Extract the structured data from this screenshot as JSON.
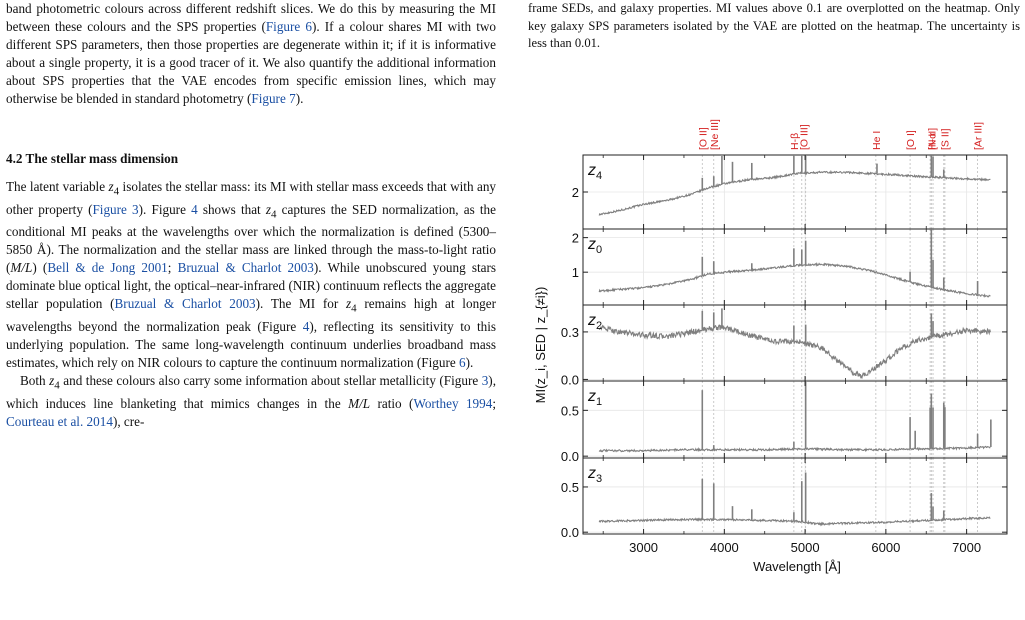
{
  "left": {
    "para1": [
      {
        "t": "band photometric colours across different redshift slices. We do this by measuring the MI between these colours and the SPS properties ("
      },
      {
        "t": "Figure 6",
        "c": 1
      },
      {
        "t": "). If a colour shares MI with two different SPS parameters, then those properties are degenerate within it; if it is informative about a single property, it is a good tracer of it. We also quantify the additional information about SPS properties that the VAE encodes from specific emission lines, which may otherwise be blended in standard photometry ("
      },
      {
        "t": "Figure 7",
        "c": 1
      },
      {
        "t": ")."
      }
    ],
    "section_heading": "4.2  The stellar mass dimension",
    "para2": [
      {
        "t": "The latent variable "
      },
      {
        "t": "z",
        "m": 1
      },
      {
        "t": "4",
        "sub": 1
      },
      {
        "t": " isolates the stellar mass: its MI with stellar mass exceeds that with any other property ("
      },
      {
        "t": "Figure 3",
        "c": 1
      },
      {
        "t": "). Figure "
      },
      {
        "t": "4",
        "c": 1
      },
      {
        "t": " shows that "
      },
      {
        "t": "z",
        "m": 1
      },
      {
        "t": "4",
        "sub": 1
      },
      {
        "t": " captures the SED normalization, as the conditional MI peaks at the wavelengths over which the normalization is defined (5300–5850 Å). The normalization and the stellar mass are linked through the mass-to-light ratio ("
      },
      {
        "t": "M/L",
        "m": 1
      },
      {
        "t": ") ("
      },
      {
        "t": "Bell & de Jong 2001",
        "c": 1
      },
      {
        "t": "; "
      },
      {
        "t": "Bruzual & Charlot 2003",
        "c": 1
      },
      {
        "t": "). While unobscured young stars dominate blue optical light, the optical–near-infrared (NIR) continuum reflects the aggregate stellar population ("
      },
      {
        "t": "Bruzual & Charlot 2003",
        "c": 1
      },
      {
        "t": "). The MI for "
      },
      {
        "t": "z",
        "m": 1
      },
      {
        "t": "4",
        "sub": 1
      },
      {
        "t": " remains high at longer wavelengths beyond the normalization peak (Figure "
      },
      {
        "t": "4",
        "c": 1
      },
      {
        "t": "), reflecting its sensitivity to this underlying population. The same long-wavelength continuum underlies broadband mass estimates, which rely on NIR colours to capture the continuum normalization (Figure "
      },
      {
        "t": "6",
        "c": 1
      },
      {
        "t": ")."
      }
    ],
    "para3": [
      {
        "t": "Both "
      },
      {
        "t": "z",
        "m": 1
      },
      {
        "t": "4",
        "sub": 1
      },
      {
        "t": " and these colours also carry some information about stellar metallicity (Figure "
      },
      {
        "t": "3",
        "c": 1
      },
      {
        "t": "), which induces line blanketing that mimics changes in the "
      },
      {
        "t": "M/L",
        "m": 1
      },
      {
        "t": " ratio ("
      },
      {
        "t": "Worthey 1994",
        "c": 1
      },
      {
        "t": "; "
      },
      {
        "t": "Courteau et al. 2014",
        "c": 1
      },
      {
        "t": "), cre-"
      }
    ]
  },
  "caption": "frame SEDs, and galaxy properties. MI values above 0.1 are overplotted on the heatmap. Only key galaxy SPS parameters isolated by the VAE are plotted on the heatmap. The uncertainty is less than 0.01.",
  "chart_data": {
    "type": "line",
    "xlabel": "Wavelength [Å]",
    "ylabel": "MI(z_i, SED | z_{≠i})",
    "xlim": [
      2250,
      7500
    ],
    "x_ticks": [
      3000,
      4000,
      5000,
      6000,
      7000
    ],
    "grid": true,
    "emission_lines": [
      {
        "label": "[O II]",
        "wl": [
          3727
        ]
      },
      {
        "label": "[Ne III]",
        "wl": [
          3869
        ]
      },
      {
        "label": "H-β",
        "wl": [
          4861
        ]
      },
      {
        "label": "[O III]",
        "wl": [
          4959,
          5007
        ]
      },
      {
        "label": "He I",
        "wl": [
          5876
        ]
      },
      {
        "label": "[O I]",
        "wl": [
          6300
        ]
      },
      {
        "label": "H-α",
        "wl": [
          6563
        ]
      },
      {
        "label": "[N II]",
        "wl": [
          6548,
          6584
        ]
      },
      {
        "label": "[S II]",
        "wl": [
          6717,
          6731
        ]
      },
      {
        "label": "[Ar III]",
        "wl": [
          7136
        ]
      }
    ],
    "panels": [
      {
        "name": "z4",
        "label": "z",
        "sub": "4",
        "ylim": [
          1.1,
          2.9
        ],
        "yticks": [
          2
        ],
        "series": [
          {
            "x": [
              2450,
              2700,
              3000,
              3300,
              3600,
              3800,
              4000,
              4300,
              4600,
              4900,
              5200,
              5500,
              5800,
              6100,
              6400,
              6700,
              7000,
              7300
            ],
            "y": [
              1.45,
              1.55,
              1.7,
              1.8,
              1.95,
              2.1,
              2.2,
              2.3,
              2.35,
              2.45,
              2.48,
              2.48,
              2.45,
              2.42,
              2.38,
              2.35,
              2.32,
              2.3
            ]
          }
        ],
        "spikes": [
          [
            3727,
            0.3
          ],
          [
            3869,
            0.25
          ],
          [
            3970,
            0.7
          ],
          [
            4101,
            0.5
          ],
          [
            4340,
            0.4
          ],
          [
            4861,
            0.6
          ],
          [
            4959,
            0.55
          ],
          [
            5007,
            0.75
          ],
          [
            5890,
            0.25
          ],
          [
            6563,
            0.6
          ],
          [
            6584,
            0.5
          ],
          [
            6717,
            0.2
          ]
        ]
      },
      {
        "name": "z0",
        "label": "z",
        "sub": "0",
        "ylim": [
          0.05,
          2.25
        ],
        "yticks": [
          1,
          2
        ],
        "series": [
          {
            "x": [
              2450,
              2700,
              3000,
              3300,
              3600,
              3800,
              4000,
              4300,
              4600,
              4900,
              5200,
              5500,
              5800,
              6100,
              6400,
              6700,
              7000,
              7300
            ],
            "y": [
              0.45,
              0.5,
              0.55,
              0.65,
              0.8,
              0.95,
              1.0,
              1.05,
              1.12,
              1.2,
              1.23,
              1.18,
              1.05,
              0.85,
              0.65,
              0.5,
              0.38,
              0.3
            ]
          }
        ],
        "spikes": [
          [
            3727,
            0.55
          ],
          [
            3869,
            0.35
          ],
          [
            4340,
            0.2
          ],
          [
            4861,
            0.5
          ],
          [
            4959,
            0.45
          ],
          [
            5007,
            0.7
          ],
          [
            6300,
            0.3
          ],
          [
            6563,
            1.7
          ],
          [
            6584,
            0.8
          ],
          [
            6717,
            0.35
          ],
          [
            7136,
            0.4
          ]
        ]
      },
      {
        "name": "z2",
        "label": "z",
        "sub": "2",
        "ylim": [
          -0.01,
          0.47
        ],
        "yticks": [
          0.0,
          0.3
        ],
        "series": [
          {
            "x": [
              2450,
              2700,
              3000,
              3300,
              3600,
              3800,
              4000,
              4300,
              4600,
              4900,
              5200,
              5400,
              5600,
              5700,
              5800,
              6000,
              6200,
              6400,
              6600,
              6800,
              7000,
              7300
            ],
            "y": [
              0.33,
              0.3,
              0.28,
              0.27,
              0.3,
              0.32,
              0.33,
              0.28,
              0.24,
              0.24,
              0.2,
              0.12,
              0.04,
              0.02,
              0.05,
              0.12,
              0.2,
              0.25,
              0.27,
              0.29,
              0.31,
              0.3
            ]
          }
        ],
        "spikes": [
          [
            3727,
            0.12
          ],
          [
            3869,
            0.1
          ],
          [
            3970,
            0.12
          ],
          [
            4861,
            0.1
          ],
          [
            5007,
            0.12
          ],
          [
            6563,
            0.15
          ],
          [
            6584,
            0.1
          ]
        ]
      },
      {
        "name": "z1",
        "label": "z",
        "sub": "1",
        "ylim": [
          -0.02,
          0.82
        ],
        "yticks": [
          0.0,
          0.5
        ],
        "series": [
          {
            "x": [
              2450,
              3000,
              3500,
              4000,
              4500,
              5000,
              5500,
              6000,
              6500,
              7000,
              7300
            ],
            "y": [
              0.06,
              0.06,
              0.07,
              0.07,
              0.07,
              0.08,
              0.07,
              0.07,
              0.08,
              0.09,
              0.1
            ]
          }
        ],
        "spikes": [
          [
            3727,
            0.65
          ],
          [
            3869,
            0.05
          ],
          [
            4861,
            0.08
          ],
          [
            5007,
            0.75
          ],
          [
            6300,
            0.35
          ],
          [
            6363,
            0.2
          ],
          [
            6548,
            0.45
          ],
          [
            6563,
            0.6
          ],
          [
            6584,
            0.45
          ],
          [
            6717,
            0.5
          ],
          [
            6731,
            0.45
          ],
          [
            7136,
            0.15
          ],
          [
            7300,
            0.3
          ]
        ]
      },
      {
        "name": "z3",
        "label": "z",
        "sub": "3",
        "ylim": [
          -0.02,
          0.82
        ],
        "yticks": [
          0.0,
          0.5
        ],
        "series": [
          {
            "x": [
              2450,
              3000,
              3500,
              4000,
              4500,
              4900,
              5200,
              5500,
              6000,
              6500,
              7000,
              7300
            ],
            "y": [
              0.12,
              0.13,
              0.14,
              0.14,
              0.13,
              0.12,
              0.09,
              0.1,
              0.11,
              0.13,
              0.15,
              0.16
            ]
          }
        ],
        "spikes": [
          [
            3727,
            0.45
          ],
          [
            3869,
            0.4
          ],
          [
            4101,
            0.15
          ],
          [
            4340,
            0.12
          ],
          [
            4861,
            0.1
          ],
          [
            4959,
            0.45
          ],
          [
            5007,
            0.55
          ],
          [
            6563,
            0.3
          ],
          [
            6584,
            0.15
          ],
          [
            6717,
            0.1
          ]
        ]
      }
    ]
  }
}
